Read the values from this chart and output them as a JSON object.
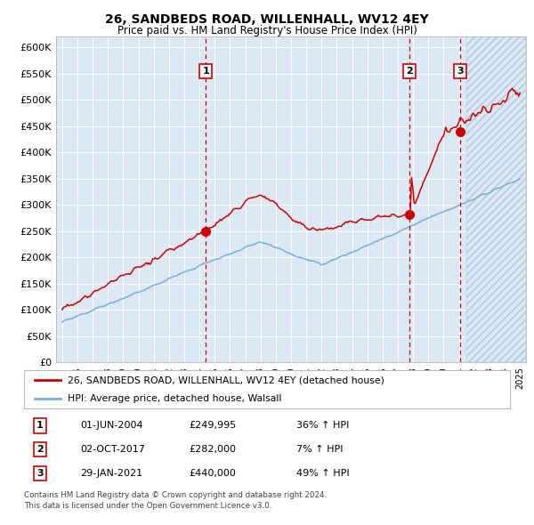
{
  "title": "26, SANDBEDS ROAD, WILLENHALL, WV12 4EY",
  "subtitle": "Price paid vs. HM Land Registry's House Price Index (HPI)",
  "plot_bg_color": "#dce9f5",
  "red_line_color": "#cc0000",
  "blue_line_color": "#7aaddc",
  "sale_dates": [
    2004.42,
    2017.75,
    2021.08
  ],
  "sale_prices": [
    249995,
    282000,
    440000
  ],
  "sale_labels": [
    "1",
    "2",
    "3"
  ],
  "ylim_min": 0,
  "ylim_max": 620000,
  "yticks": [
    0,
    50000,
    100000,
    150000,
    200000,
    250000,
    300000,
    350000,
    400000,
    450000,
    500000,
    550000,
    600000
  ],
  "legend_red": "26, SANDBEDS ROAD, WILLENHALL, WV12 4EY (detached house)",
  "legend_blue": "HPI: Average price, detached house, Walsall",
  "table": [
    [
      "1",
      "01-JUN-2004",
      "£249,995",
      "36% ↑ HPI"
    ],
    [
      "2",
      "02-OCT-2017",
      "£282,000",
      "7% ↑ HPI"
    ],
    [
      "3",
      "29-JAN-2021",
      "£440,000",
      "49% ↑ HPI"
    ]
  ],
  "footer1": "Contains HM Land Registry data © Crown copyright and database right 2024.",
  "footer2": "This data is licensed under the Open Government Licence v3.0.",
  "start_year": 1995,
  "end_year": 2025,
  "xlim_min": 1994.6,
  "xlim_max": 2025.4
}
